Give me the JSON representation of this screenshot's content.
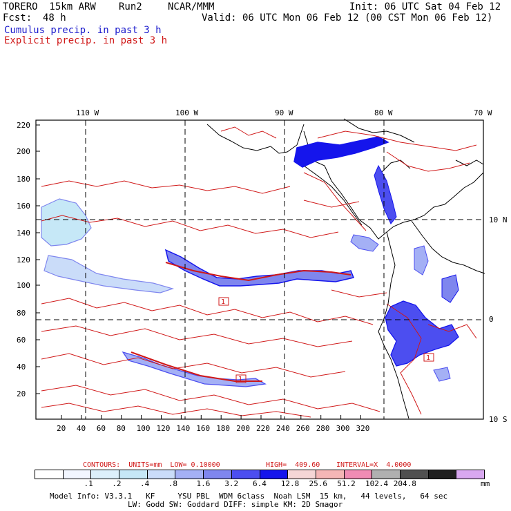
{
  "header": {
    "model": "TORERO  15km ARW",
    "run": "Run2",
    "center": "NCAR/MMM",
    "init": "Init: 06 UTC Sat 04 Feb 12",
    "fcst_label": "Fcst:",
    "fcst_value": "48 h",
    "valid": "Valid: 06 UTC Mon 06 Feb 12 (00 CST Mon 06 Feb 12)",
    "legend_cumulus": "Cumulus precip. in past 3 h",
    "legend_explicit": "Explicit precip. in past 3 h"
  },
  "map": {
    "top_lon_labels": [
      "110 W",
      "100 W",
      "90 W",
      "80 W",
      "70 W"
    ],
    "right_lat_labels": [
      "10 N",
      "0",
      "10 S"
    ],
    "left_y_labels": [
      "220",
      "200",
      "180",
      "160",
      "140",
      "120",
      "100",
      "80",
      "60",
      "40",
      "20"
    ],
    "bottom_x_labels": [
      "20",
      "40",
      "60",
      "80",
      "100",
      "120",
      "140",
      "160",
      "180",
      "200",
      "220",
      "240",
      "260",
      "280",
      "300",
      "320"
    ],
    "contour_marks": [
      "1",
      "1",
      "1"
    ]
  },
  "contours": {
    "units_text": "CONTOURS:  UNITS=mm  LOW= 0.10000",
    "high_text": "HIGH=  409.60",
    "interval_text": "INTERVAL=X  4.0000"
  },
  "colorbar": {
    "colors": [
      "#ffffff",
      "#f2f6ff",
      "#ddf0fb",
      "#c6e8f7",
      "#cadcf9",
      "#a4b0f5",
      "#7f86ee",
      "#4c4ef0",
      "#1515ec",
      "#f5d6d6",
      "#f4b6b6",
      "#f08cb4",
      "#b0b0b0",
      "#505050",
      "#202020",
      "#d8a8f0"
    ],
    "labels": [
      ".1",
      ".2",
      ".4",
      ".8",
      "1.6",
      "3.2",
      "6.4",
      "12.8",
      "25.6",
      "51.2",
      "102.4",
      "204.8"
    ],
    "unit": "mm"
  },
  "footer": {
    "line1": "Model Info: V3.3.1   KF     YSU PBL  WDM 6class  Noah LSM  15 km,   44 levels,   64 sec",
    "line2": "LW: Godd SW: Goddard DIFF: simple KM: 2D Smagor"
  }
}
